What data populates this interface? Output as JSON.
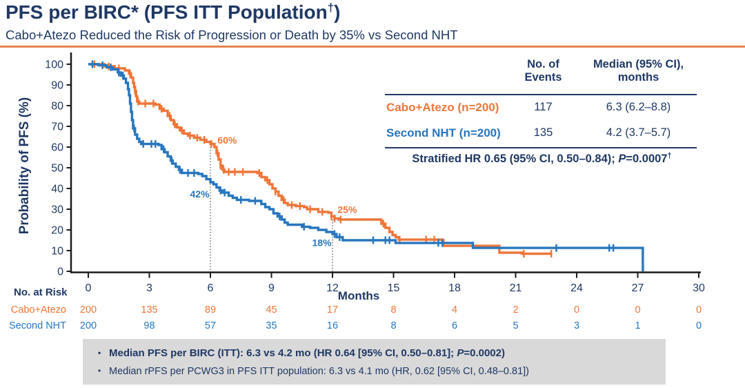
{
  "colors": {
    "navy": "#1F3864",
    "orange": "#ED7639",
    "blue": "#2776BE",
    "axis": "#1A1A1A",
    "divider": "#E8824E",
    "box_bg": "#D9D9D9",
    "ref_line": "#555555"
  },
  "header": {
    "title_main": "PFS per BIRC* (PFS ITT Population",
    "title_sup": "†",
    "title_close": ")",
    "subtitle": "Cabo+Atezo Reduced the Risk of Progression or Death by 35% vs Second NHT"
  },
  "summary_table": {
    "header_events": "No. of\nEvents",
    "header_median": "Median (95% CI),\nmonths",
    "rows": [
      {
        "label": "Cabo+Atezo (n=200)",
        "events": "117",
        "median": "6.3 (6.2–8.8)"
      },
      {
        "label": "Second NHT (n=200)",
        "events": "135",
        "median": "4.2 (3.7–5.7)"
      }
    ],
    "footer_prefix": "Stratified HR 0.65 (95% CI, 0.50–0.84); ",
    "footer_p": "P",
    "footer_value": "=0.0007",
    "footer_sup": "†"
  },
  "key_findings": {
    "bullet_glyph": "•",
    "line1_pre": "Median PFS per BIRC (ITT): 6.3 vs 4.2 mo (HR 0.64 [95% CI, 0.50–0.81]; ",
    "line1_p": "P",
    "line1_post": "=0.0002)",
    "line2": "Median rPFS per PCWG3 in PFS ITT population: 6.3 vs 4.1 mo (HR, 0.62 [95% CI, 0.48–0.81])"
  },
  "chart_data": {
    "type": "line",
    "subtype": "kaplan-meier",
    "title": "PFS per BIRC (PFS ITT Population)",
    "xlabel": "Months",
    "ylabel": "Probability of PFS (%)",
    "xlim": [
      0,
      30
    ],
    "ylim": [
      0,
      100
    ],
    "xtick_step": 3,
    "ytick_step": 10,
    "grid": false,
    "series": [
      {
        "name": "Cabo+Atezo",
        "color_key": "orange",
        "steps": [
          [
            0,
            100
          ],
          [
            0.8,
            99
          ],
          [
            1.3,
            98
          ],
          [
            1.8,
            97
          ],
          [
            2.0,
            95.5
          ],
          [
            2.1,
            93.5
          ],
          [
            2.2,
            91
          ],
          [
            2.25,
            89
          ],
          [
            2.3,
            87
          ],
          [
            2.35,
            84.5
          ],
          [
            2.4,
            82
          ],
          [
            2.5,
            81
          ],
          [
            3.3,
            80.5
          ],
          [
            3.5,
            78.5
          ],
          [
            3.7,
            77.5
          ],
          [
            3.9,
            75
          ],
          [
            4.05,
            73
          ],
          [
            4.2,
            71
          ],
          [
            4.35,
            69.5
          ],
          [
            4.5,
            68
          ],
          [
            4.7,
            66.5
          ],
          [
            4.9,
            65.5
          ],
          [
            5.2,
            64.5
          ],
          [
            5.5,
            63.5
          ],
          [
            5.8,
            62.5
          ],
          [
            6.0,
            61.5
          ],
          [
            6.2,
            60
          ],
          [
            6.3,
            57
          ],
          [
            6.4,
            54
          ],
          [
            6.5,
            51
          ],
          [
            6.6,
            49
          ],
          [
            6.7,
            48
          ],
          [
            8.3,
            47.5
          ],
          [
            8.5,
            45.5
          ],
          [
            8.7,
            44
          ],
          [
            8.9,
            42
          ],
          [
            9.05,
            40
          ],
          [
            9.2,
            38.5
          ],
          [
            9.35,
            36.5
          ],
          [
            9.5,
            34.5
          ],
          [
            9.65,
            33
          ],
          [
            9.8,
            32
          ],
          [
            10.2,
            31.5
          ],
          [
            10.6,
            31
          ],
          [
            10.75,
            30
          ],
          [
            11.3,
            28.7
          ],
          [
            11.8,
            28.3
          ],
          [
            11.95,
            26.5
          ],
          [
            12.1,
            25.5
          ],
          [
            12.3,
            25
          ],
          [
            14.4,
            23
          ],
          [
            14.6,
            21
          ],
          [
            14.8,
            19
          ],
          [
            14.95,
            17.5
          ],
          [
            15.1,
            16.5
          ],
          [
            15.25,
            15.3
          ],
          [
            17.4,
            15
          ],
          [
            17.45,
            12.3
          ],
          [
            20.1,
            12.3
          ],
          [
            20.2,
            9
          ],
          [
            21.3,
            8.5
          ],
          [
            22.8,
            8.5
          ]
        ],
        "censor_months": [
          0.3,
          1.0,
          1.5,
          2.05,
          2.3,
          2.45,
          2.8,
          3.2,
          3.6,
          4.0,
          4.25,
          4.6,
          5.0,
          5.35,
          5.7,
          6.05,
          6.35,
          6.5,
          6.65,
          6.9,
          7.2,
          7.6,
          8.4,
          8.8,
          9.2,
          9.6,
          10.0,
          10.4,
          10.9,
          11.5,
          11.95,
          12.1,
          12.4,
          14.5,
          15.3,
          16.6,
          17.0,
          21.4,
          22.75
        ]
      },
      {
        "name": "Second NHT",
        "color_key": "blue",
        "steps": [
          [
            0,
            100
          ],
          [
            0.5,
            99.5
          ],
          [
            0.9,
            98.5
          ],
          [
            1.2,
            97.5
          ],
          [
            1.45,
            96
          ],
          [
            1.6,
            94.5
          ],
          [
            1.75,
            93
          ],
          [
            1.85,
            91
          ],
          [
            1.95,
            88
          ],
          [
            2.0,
            85
          ],
          [
            2.05,
            81
          ],
          [
            2.1,
            77
          ],
          [
            2.15,
            73
          ],
          [
            2.2,
            69
          ],
          [
            2.3,
            66
          ],
          [
            2.4,
            64
          ],
          [
            2.5,
            62.5
          ],
          [
            2.6,
            61.5
          ],
          [
            3.45,
            61
          ],
          [
            3.6,
            59
          ],
          [
            3.75,
            57.5
          ],
          [
            3.9,
            55.5
          ],
          [
            4.05,
            53.5
          ],
          [
            4.15,
            52
          ],
          [
            4.3,
            50.5
          ],
          [
            4.45,
            49
          ],
          [
            4.6,
            47.5
          ],
          [
            5.4,
            47
          ],
          [
            5.6,
            46
          ],
          [
            5.8,
            44.5
          ],
          [
            6.0,
            43
          ],
          [
            6.15,
            42
          ],
          [
            6.3,
            40.5
          ],
          [
            6.45,
            39
          ],
          [
            6.6,
            38
          ],
          [
            6.9,
            36.5
          ],
          [
            7.1,
            35.5
          ],
          [
            7.3,
            34.5
          ],
          [
            7.9,
            34
          ],
          [
            8.5,
            32.5
          ],
          [
            8.7,
            31
          ],
          [
            8.9,
            30
          ],
          [
            9.1,
            28
          ],
          [
            9.3,
            26.5
          ],
          [
            9.5,
            25
          ],
          [
            9.65,
            23.5
          ],
          [
            9.8,
            22.5
          ],
          [
            10.5,
            21.5
          ],
          [
            10.9,
            21
          ],
          [
            11.3,
            20
          ],
          [
            11.7,
            19
          ],
          [
            12.0,
            18
          ],
          [
            12.2,
            16.5
          ],
          [
            12.5,
            15
          ],
          [
            15.1,
            13.7
          ],
          [
            18.9,
            11.3
          ],
          [
            27.2,
            11.3
          ],
          [
            27.25,
            0
          ]
        ],
        "censor_months": [
          0.2,
          0.7,
          1.1,
          1.5,
          1.7,
          2.25,
          2.7,
          3.1,
          3.3,
          3.7,
          4.1,
          4.5,
          4.9,
          5.2,
          6.5,
          6.7,
          7.5,
          8.2,
          9.4,
          10.6,
          12.1,
          12.35,
          14.0,
          14.6,
          14.8,
          17.2,
          17.4,
          23.0,
          25.6,
          25.8
        ]
      }
    ],
    "annotations": [
      {
        "text": "60%",
        "month": 6.35,
        "pct": 63,
        "color_key": "orange"
      },
      {
        "text": "42%",
        "month": 5.0,
        "pct": 37,
        "color_key": "blue"
      },
      {
        "text": "25%",
        "month": 12.25,
        "pct": 29.5,
        "color_key": "orange"
      },
      {
        "text": "18%",
        "month": 11.0,
        "pct": 13.5,
        "color_key": "blue"
      }
    ],
    "reference_lines": [
      {
        "month": 6,
        "top_pct": 60
      },
      {
        "month": 12,
        "top_pct": 25
      }
    ],
    "at_risk": {
      "label": "No. at Risk",
      "months": [
        0,
        3,
        6,
        9,
        12,
        15,
        18,
        21,
        24,
        27,
        30
      ],
      "rows": [
        {
          "name": "Cabo+Atezo",
          "color_key": "orange",
          "values": [
            200,
            135,
            89,
            45,
            17,
            8,
            4,
            2,
            0,
            0,
            0
          ]
        },
        {
          "name": "Second NHT",
          "color_key": "blue",
          "values": [
            200,
            98,
            57,
            35,
            16,
            8,
            6,
            5,
            3,
            1,
            0
          ]
        }
      ]
    }
  }
}
